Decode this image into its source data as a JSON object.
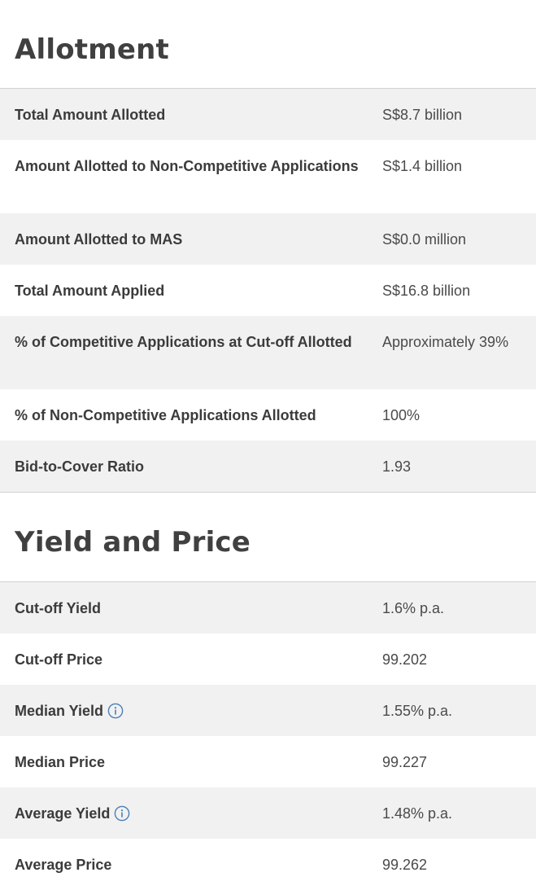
{
  "allotment": {
    "title": "Allotment",
    "rows": [
      {
        "label": "Total Amount Allotted",
        "value": "S$8.7 billion"
      },
      {
        "label": "Amount Allotted to Non-Competitive Applications",
        "value": "S$1.4 billion"
      },
      {
        "label": "Amount Allotted to MAS",
        "value": "S$0.0 million"
      },
      {
        "label": "Total Amount Applied",
        "value": "S$16.8 billion"
      },
      {
        "label": "% of Competitive Applications at Cut-off Allotted",
        "value": "Approximately 39%"
      },
      {
        "label": "% of Non-Competitive Applications Allotted",
        "value": "100%"
      },
      {
        "label": "Bid-to-Cover Ratio",
        "value": "1.93"
      }
    ]
  },
  "yield_price": {
    "title": "Yield and Price",
    "rows": [
      {
        "label": "Cut-off Yield",
        "value": "1.6% p.a."
      },
      {
        "label": "Cut-off Price",
        "value": "99.202"
      },
      {
        "label": "Median Yield",
        "value": "1.55% p.a.",
        "icon": "info-icon"
      },
      {
        "label": "Median Price",
        "value": "99.227"
      },
      {
        "label": "Average Yield",
        "value": "1.48% p.a.",
        "icon": "info-icon"
      },
      {
        "label": "Average Price",
        "value": "99.262"
      }
    ]
  },
  "colors": {
    "shaded_row": "#f1f1f1",
    "divider": "#d2d2d2",
    "icon": "#4a7fb5"
  }
}
